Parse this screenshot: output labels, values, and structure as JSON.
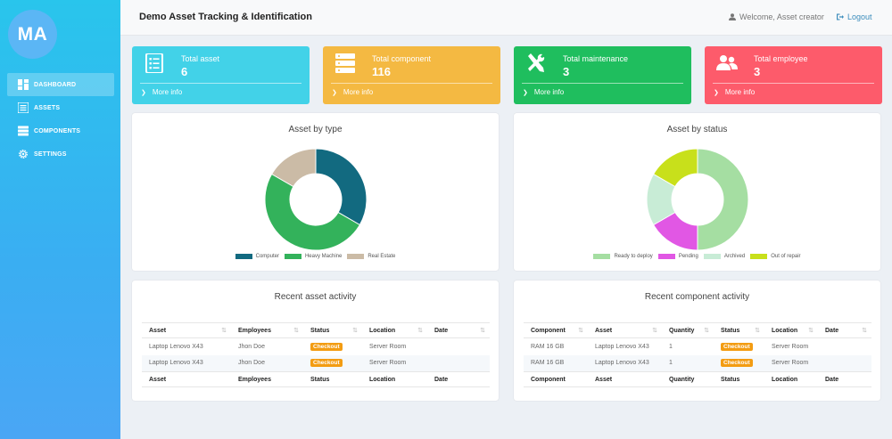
{
  "brand": {
    "logo_text": "MA"
  },
  "sidebar": {
    "items": [
      {
        "label": "DASHBOARD",
        "icon": "dashboard-icon",
        "active": true
      },
      {
        "label": "ASSETS",
        "icon": "list-icon",
        "active": false
      },
      {
        "label": "COMPONENTS",
        "icon": "server-icon",
        "active": false
      },
      {
        "label": "SETTINGS",
        "icon": "gear-icon",
        "active": false
      }
    ]
  },
  "header": {
    "title": "Demo Asset Tracking & Identification",
    "welcome": "Welcome, Asset creator",
    "logout": "Logout"
  },
  "stats": [
    {
      "label": "Total asset",
      "value": "6",
      "more": "More info",
      "color": "#42d2e8",
      "icon": "list-icon"
    },
    {
      "label": "Total component",
      "value": "116",
      "more": "More info",
      "color": "#f4b942",
      "icon": "server-icon"
    },
    {
      "label": "Total maintenance",
      "value": "3",
      "more": "More info",
      "color": "#1fbe5e",
      "icon": "tools-icon"
    },
    {
      "label": "Total employee",
      "value": "3",
      "more": "More info",
      "color": "#fd5b6b",
      "icon": "users-icon"
    }
  ],
  "asset_by_type": {
    "title": "Asset by type",
    "chart_data": {
      "type": "pie",
      "donut": true,
      "labels": [
        "Computer",
        "Heavy Machine",
        "Real Estate"
      ],
      "values": [
        2,
        3,
        1
      ],
      "colors": [
        "#126a80",
        "#33b25b",
        "#cbbba6"
      ],
      "legend": "bottom"
    }
  },
  "asset_by_status": {
    "title": "Asset by status",
    "chart_data": {
      "type": "pie",
      "donut": true,
      "labels": [
        "Ready to deploy",
        "Pending",
        "Archived",
        "Out of repair"
      ],
      "values": [
        3,
        1,
        1,
        1
      ],
      "colors": [
        "#a5dea2",
        "#e157e4",
        "#c8ecd6",
        "#c8e01b"
      ],
      "legend": "bottom"
    }
  },
  "asset_activity": {
    "title": "Recent asset activity",
    "columns": [
      "Asset",
      "Employees",
      "Status",
      "Location",
      "Date"
    ],
    "rows": [
      {
        "asset": "Laptop Lenovo X43",
        "employee": "Jhon Doe",
        "status": "Checkout",
        "location": "Server Room",
        "date": ""
      },
      {
        "asset": "Laptop Lenovo X43",
        "employee": "Jhon Doe",
        "status": "Checkout",
        "location": "Server Room",
        "date": ""
      }
    ]
  },
  "component_activity": {
    "title": "Recent component activity",
    "columns": [
      "Component",
      "Asset",
      "Quantity",
      "Status",
      "Location",
      "Date"
    ],
    "rows": [
      {
        "component": "RAM 16 GB",
        "asset": "Laptop Lenovo X43",
        "quantity": "1",
        "status": "Checkout",
        "location": "Server Room",
        "date": ""
      },
      {
        "component": "RAM 16 GB",
        "asset": "Laptop Lenovo X43",
        "quantity": "1",
        "status": "Checkout",
        "location": "Server Room",
        "date": ""
      }
    ]
  }
}
